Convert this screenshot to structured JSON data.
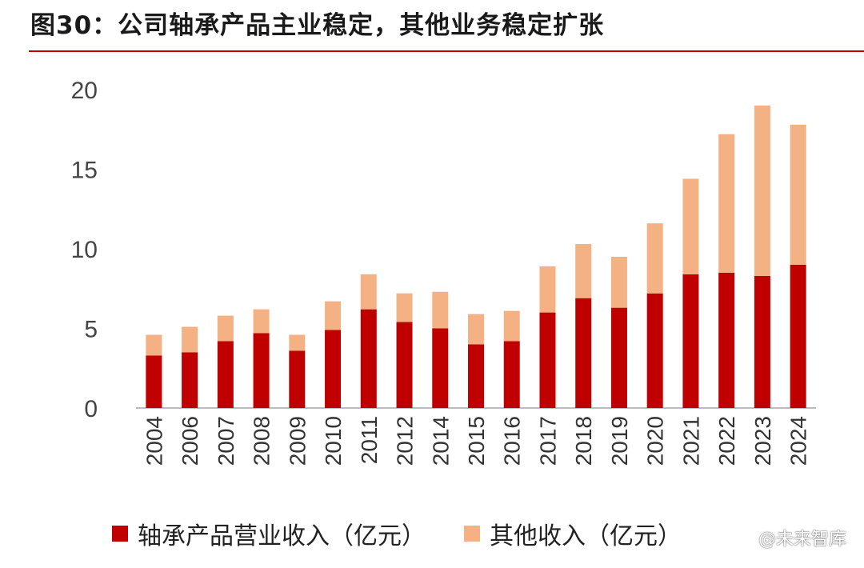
{
  "title": "图30：公司轴承产品主业稳定，其他业务稳定扩张",
  "chart_data": {
    "type": "bar",
    "stacked": true,
    "categories": [
      "2004",
      "2006",
      "2007",
      "2008",
      "2009",
      "2010",
      "2011",
      "2012",
      "2014",
      "2015",
      "2016",
      "2017",
      "2018",
      "2019",
      "2020",
      "2021",
      "2022",
      "2023",
      "2024"
    ],
    "series": [
      {
        "name": "轴承产品营业收入（亿元）",
        "color": "#c00000",
        "values": [
          3.3,
          3.5,
          4.2,
          4.7,
          3.6,
          4.9,
          6.2,
          5.4,
          5.0,
          4.0,
          4.2,
          6.0,
          6.9,
          6.3,
          7.2,
          8.4,
          8.5,
          8.3,
          9.0
        ]
      },
      {
        "name": "其他收入（亿元）",
        "color": "#f4b183",
        "values": [
          1.3,
          1.6,
          1.6,
          1.5,
          1.0,
          1.8,
          2.2,
          1.8,
          2.3,
          1.9,
          1.9,
          2.9,
          3.4,
          3.2,
          4.4,
          6.0,
          8.7,
          10.7,
          8.8
        ]
      }
    ],
    "ylim": [
      0,
      20
    ],
    "yticks": [
      0,
      5,
      10,
      15,
      20
    ],
    "xlabel": "",
    "ylabel": "",
    "legend": "bottom"
  },
  "watermark": "@未来智库"
}
